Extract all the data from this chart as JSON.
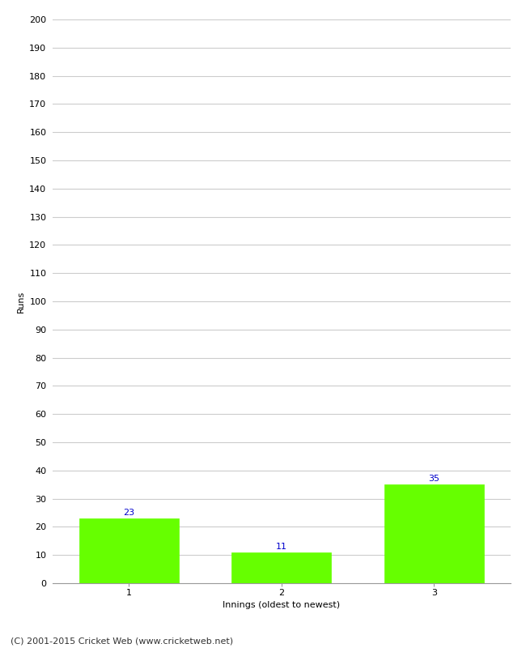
{
  "categories": [
    "1",
    "2",
    "3"
  ],
  "values": [
    23,
    11,
    35
  ],
  "bar_color": "#66ff00",
  "bar_edge_color": "#66ff00",
  "value_label_color": "#0000cc",
  "value_label_fontsize": 8,
  "xlabel": "Innings (oldest to newest)",
  "ylabel": "Runs",
  "ylim": [
    0,
    200
  ],
  "yticks": [
    0,
    10,
    20,
    30,
    40,
    50,
    60,
    70,
    80,
    90,
    100,
    110,
    120,
    130,
    140,
    150,
    160,
    170,
    180,
    190,
    200
  ],
  "grid_color": "#cccccc",
  "background_color": "#ffffff",
  "footer_text": "(C) 2001-2015 Cricket Web (www.cricketweb.net)",
  "footer_fontsize": 8,
  "tick_label_fontsize": 8,
  "axis_label_fontsize": 8,
  "bar_width": 0.65
}
